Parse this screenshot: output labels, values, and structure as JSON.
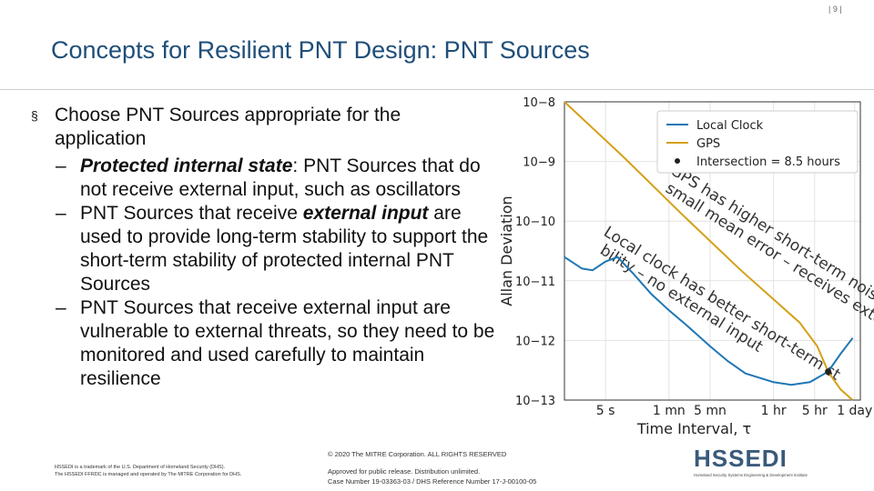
{
  "page_number": "| 9 |",
  "title": "Concepts for Resilient PNT Design: PNT Sources",
  "bullet": {
    "marker": "§",
    "text": "Choose PNT Sources appropriate for the application",
    "sub": [
      {
        "dash": "–",
        "em": "Protected internal state",
        "text": ": PNT Sources that do not receive external input, such as oscillators"
      },
      {
        "dash": "–",
        "pre": "PNT Sources that receive ",
        "em": "external input",
        "text": " are used to provide long-term stability to support the short-term stability of protected internal PNT Sources"
      },
      {
        "dash": "–",
        "text": "PNT Sources that receive external input are vulnerable to external threats, so they need to be monitored and used carefully to maintain resilience"
      }
    ]
  },
  "footer": {
    "copyright": "© 2020 The MITRE Corporation. ALL RIGHTS RESERVED",
    "approved": "Approved for public release. Distribution unlimited.",
    "case": "Case Number 19-03363-03 / DHS Reference Number 17-J-00100-05",
    "trademark1": "HSSEDI is a trademark of the U.S. Department of Homeland Security (DHS).",
    "trademark2": "The HSSEDI FFRDC is managed and operated by The MITRE Corporation for DHS.",
    "logo_text": "HSSEDI",
    "logo_sub": "Homeland Security Systems Engineering & Development Institute"
  },
  "chart_data": {
    "type": "line",
    "ylabel": "Allan Deviation",
    "xlabel": "Time Interval, τ",
    "y_scale": "log",
    "x_scale": "log",
    "yticks": [
      "10−8",
      "10−9",
      "10−10",
      "10−11",
      "10−12",
      "10−13"
    ],
    "xticks": [
      "5 s",
      "1 mn",
      "5 mn",
      "1 hr",
      "5 hr",
      "1 day"
    ],
    "x_tick_seconds": [
      5,
      60,
      300,
      3600,
      18000,
      86400
    ],
    "ylim": [
      1e-13,
      1e-08
    ],
    "grid": true,
    "legend_position": "top-right",
    "legend": [
      "Local Clock",
      "GPS",
      "Intersection = 8.5 hours"
    ],
    "series": [
      {
        "name": "Local Clock",
        "color": "#1f77b4",
        "x": [
          1,
          2,
          3,
          5,
          8,
          15,
          30,
          60,
          120,
          300,
          600,
          1200,
          3600,
          7200,
          15000,
          30600,
          50000,
          80000
        ],
        "y": [
          2.5e-11,
          1.6e-11,
          1.5e-11,
          2.1e-11,
          2.5e-11,
          1.3e-11,
          6e-12,
          3.2e-12,
          1.8e-12,
          8e-13,
          4.5e-13,
          2.8e-13,
          2e-13,
          1.8e-13,
          2e-13,
          3e-13,
          6e-13,
          1.1e-12
        ]
      },
      {
        "name": "GPS",
        "color": "#d4a017",
        "x": [
          1,
          10,
          100,
          1000,
          10000,
          20000,
          30600,
          50000,
          80000
        ],
        "y": [
          1e-08,
          1.2e-09,
          1.3e-10,
          1.5e-11,
          2e-12,
          8e-13,
          3e-13,
          1.5e-13,
          1e-13
        ]
      }
    ],
    "intersection": {
      "x": 30600,
      "y": 3e-13
    },
    "annotations": [
      "GPS has higher short-term noise but small mean error – receives external input",
      "Local clock has better short-term stability – no external input"
    ]
  }
}
